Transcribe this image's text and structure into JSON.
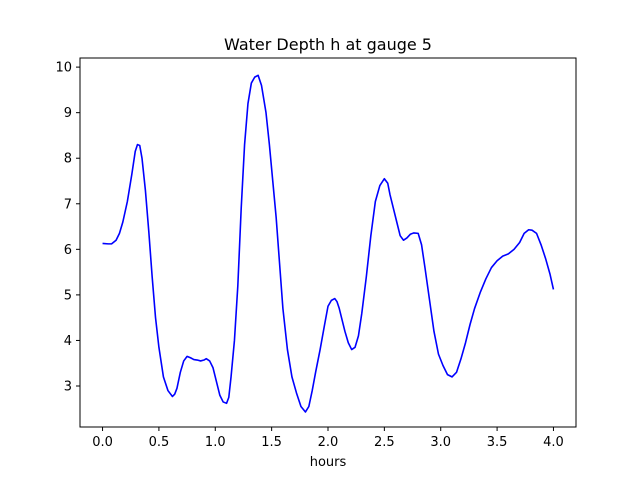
{
  "chart_data": {
    "type": "line",
    "title": "Water Depth h at gauge 5",
    "xlabel": "hours",
    "ylabel": "",
    "xlim": [
      -0.2,
      4.2
    ],
    "ylim": [
      2.1,
      10.2
    ],
    "xticks": [
      0.0,
      0.5,
      1.0,
      1.5,
      2.0,
      2.5,
      3.0,
      3.5,
      4.0
    ],
    "xtick_labels": [
      "0.0",
      "0.5",
      "1.0",
      "1.5",
      "2.0",
      "2.5",
      "3.0",
      "3.5",
      "4.0"
    ],
    "yticks": [
      3,
      4,
      5,
      6,
      7,
      8,
      9,
      10
    ],
    "ytick_labels": [
      "3",
      "4",
      "5",
      "6",
      "7",
      "8",
      "9",
      "10"
    ],
    "grid": false,
    "legend": "none",
    "series": [
      {
        "color": "#0000ff",
        "x": [
          0.0,
          0.05,
          0.08,
          0.12,
          0.15,
          0.18,
          0.22,
          0.26,
          0.29,
          0.31,
          0.33,
          0.35,
          0.38,
          0.41,
          0.44,
          0.47,
          0.5,
          0.54,
          0.58,
          0.62,
          0.64,
          0.66,
          0.69,
          0.72,
          0.75,
          0.78,
          0.81,
          0.84,
          0.87,
          0.9,
          0.92,
          0.95,
          0.98,
          1.01,
          1.04,
          1.07,
          1.1,
          1.12,
          1.14,
          1.17,
          1.2,
          1.23,
          1.26,
          1.29,
          1.32,
          1.35,
          1.38,
          1.41,
          1.43,
          1.45,
          1.48,
          1.51,
          1.54,
          1.57,
          1.6,
          1.64,
          1.68,
          1.72,
          1.76,
          1.8,
          1.83,
          1.86,
          1.89,
          1.93,
          1.97,
          2.0,
          2.03,
          2.06,
          2.08,
          2.1,
          2.12,
          2.15,
          2.18,
          2.21,
          2.24,
          2.27,
          2.3,
          2.34,
          2.38,
          2.42,
          2.46,
          2.5,
          2.53,
          2.55,
          2.58,
          2.61,
          2.64,
          2.67,
          2.7,
          2.73,
          2.76,
          2.8,
          2.83,
          2.86,
          2.9,
          2.94,
          2.98,
          3.02,
          3.06,
          3.1,
          3.14,
          3.18,
          3.22,
          3.26,
          3.3,
          3.35,
          3.4,
          3.45,
          3.5,
          3.55,
          3.6,
          3.65,
          3.7,
          3.74,
          3.78,
          3.81,
          3.85,
          3.89,
          3.93,
          3.97,
          4.0
        ],
        "y": [
          6.13,
          6.12,
          6.12,
          6.2,
          6.35,
          6.6,
          7.05,
          7.65,
          8.15,
          8.3,
          8.28,
          8.0,
          7.3,
          6.4,
          5.4,
          4.5,
          3.85,
          3.2,
          2.9,
          2.77,
          2.82,
          2.95,
          3.3,
          3.55,
          3.65,
          3.62,
          3.58,
          3.57,
          3.55,
          3.57,
          3.6,
          3.55,
          3.4,
          3.1,
          2.8,
          2.65,
          2.62,
          2.75,
          3.2,
          4.0,
          5.2,
          6.9,
          8.3,
          9.2,
          9.65,
          9.78,
          9.82,
          9.6,
          9.3,
          9.0,
          8.3,
          7.5,
          6.7,
          5.7,
          4.7,
          3.8,
          3.2,
          2.85,
          2.55,
          2.43,
          2.55,
          2.9,
          3.3,
          3.8,
          4.35,
          4.75,
          4.88,
          4.92,
          4.85,
          4.7,
          4.5,
          4.2,
          3.95,
          3.8,
          3.85,
          4.1,
          4.6,
          5.4,
          6.3,
          7.05,
          7.4,
          7.55,
          7.45,
          7.2,
          6.9,
          6.6,
          6.3,
          6.2,
          6.25,
          6.33,
          6.36,
          6.35,
          6.1,
          5.6,
          4.9,
          4.2,
          3.7,
          3.45,
          3.25,
          3.2,
          3.3,
          3.6,
          3.95,
          4.35,
          4.7,
          5.05,
          5.35,
          5.6,
          5.75,
          5.85,
          5.9,
          6.0,
          6.15,
          6.35,
          6.43,
          6.42,
          6.35,
          6.1,
          5.8,
          5.45,
          5.12
        ]
      }
    ]
  }
}
